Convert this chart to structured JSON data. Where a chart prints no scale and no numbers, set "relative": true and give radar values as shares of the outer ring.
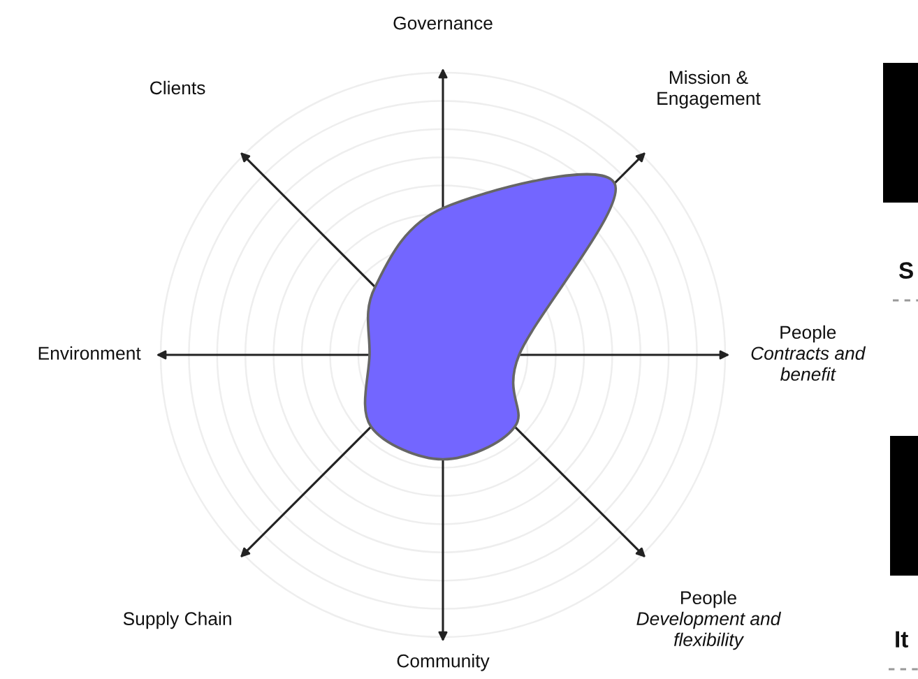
{
  "chart_data": {
    "type": "radar",
    "relative": true,
    "categories": [
      "Governance",
      "Mission &\nEngagement",
      "People\nContracts and\nbenefit",
      "People\nDevelopment and\nflexibility",
      "Community",
      "Supply Chain",
      "Environment",
      "Clients"
    ],
    "series": [
      {
        "color": "#7366ff",
        "values": [
          0.52,
          0.86,
          0.27,
          0.36,
          0.37,
          0.36,
          0.26,
          0.34
        ]
      }
    ],
    "annotations": [
      "S",
      "It"
    ]
  }
}
